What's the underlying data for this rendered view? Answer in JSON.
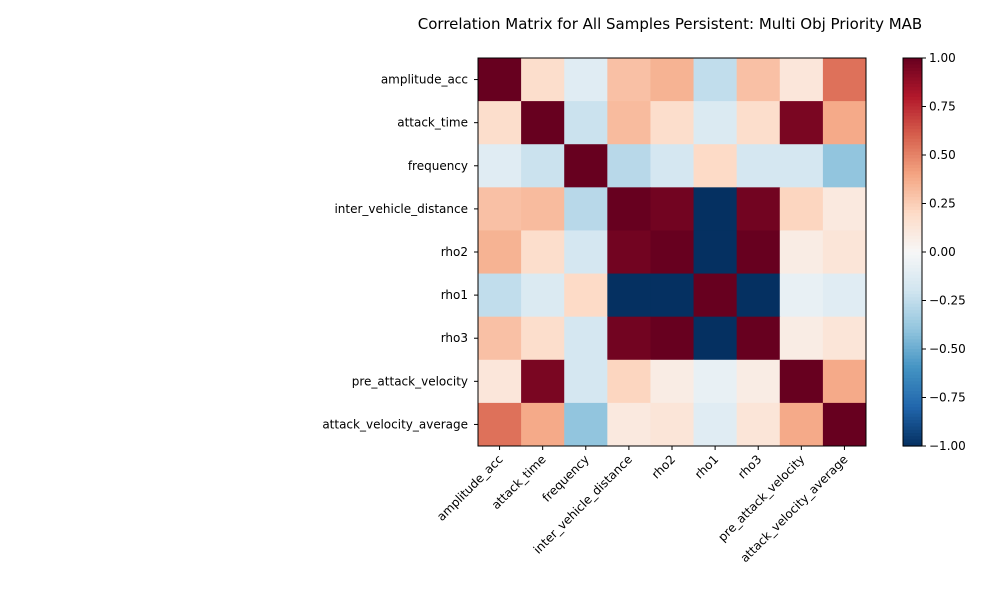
{
  "chart_data": {
    "type": "heatmap",
    "title": "Correlation Matrix for All Samples Persistent: Multi Obj Priority MAB",
    "labels": [
      "amplitude_acc",
      "attack_time",
      "frequency",
      "inter_vehicle_distance",
      "rho2",
      "rho1",
      "rho3",
      "pre_attack_velocity",
      "attack_velocity_average"
    ],
    "matrix": [
      [
        1.0,
        0.18,
        -0.12,
        0.3,
        0.35,
        -0.25,
        0.3,
        0.12,
        0.55
      ],
      [
        0.18,
        1.0,
        -0.22,
        0.32,
        0.18,
        -0.15,
        0.18,
        0.95,
        0.38
      ],
      [
        -0.12,
        -0.22,
        1.0,
        -0.28,
        -0.18,
        0.2,
        -0.18,
        -0.18,
        -0.4
      ],
      [
        0.3,
        0.32,
        -0.28,
        1.0,
        0.97,
        -1.0,
        0.97,
        0.22,
        0.1
      ],
      [
        0.35,
        0.18,
        -0.18,
        0.97,
        1.0,
        -1.0,
        1.0,
        0.08,
        0.13
      ],
      [
        -0.25,
        -0.15,
        0.2,
        -1.0,
        -1.0,
        1.0,
        -1.0,
        -0.08,
        -0.12
      ],
      [
        0.3,
        0.18,
        -0.18,
        0.97,
        1.0,
        -1.0,
        1.0,
        0.08,
        0.13
      ],
      [
        0.12,
        0.95,
        -0.18,
        0.22,
        0.08,
        -0.08,
        0.08,
        1.0,
        0.38
      ],
      [
        0.55,
        0.38,
        -0.4,
        0.1,
        0.13,
        -0.12,
        0.13,
        0.38,
        1.0
      ]
    ],
    "colorbar": {
      "range": [
        -1.0,
        1.0
      ],
      "ticks": [
        1.0,
        0.75,
        0.5,
        0.25,
        0.0,
        -0.25,
        -0.5,
        -0.75,
        -1.0
      ],
      "tick_labels": [
        "1.00",
        "0.75",
        "0.50",
        "0.25",
        "0.00",
        "−0.25",
        "−0.50",
        "−0.75",
        "−1.00"
      ],
      "colormap": "RdBu_r"
    }
  }
}
